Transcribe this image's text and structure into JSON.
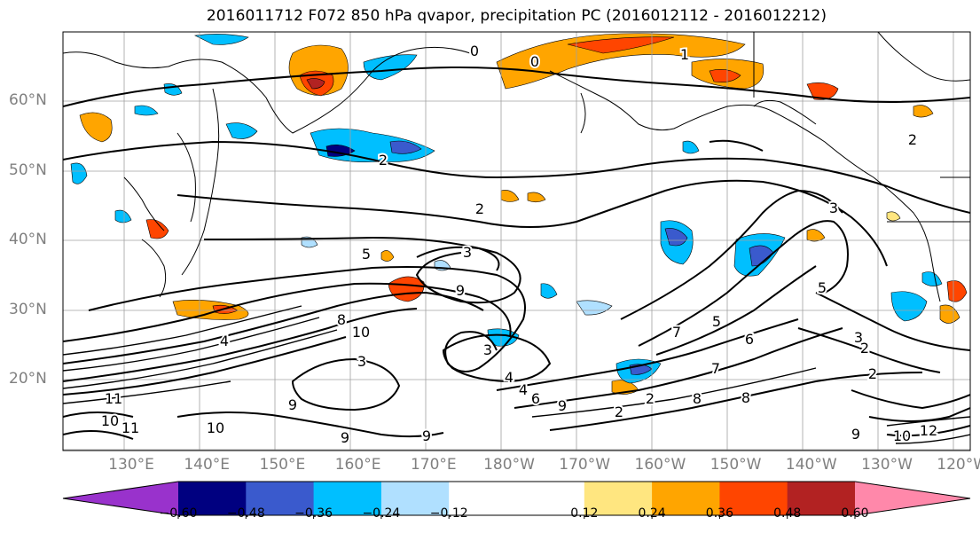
{
  "title": "2016011712 F072 850 hPa qvapor, precipitation PC (2016012112 - 2016012212)",
  "lat_labels": [
    {
      "text": "60°N",
      "lat": 60
    },
    {
      "text": "50°N",
      "lat": 50
    },
    {
      "text": "40°N",
      "lat": 40
    },
    {
      "text": "30°N",
      "lat": 30
    },
    {
      "text": "20°N",
      "lat": 20
    }
  ],
  "lon_labels": [
    "130°E",
    "140°E",
    "150°E",
    "160°E",
    "170°E",
    "180°W",
    "170°W",
    "160°W",
    "150°W",
    "140°W",
    "130°W",
    "120°W"
  ],
  "colorbar": {
    "colors": [
      "#9932cc",
      "#000080",
      "#3a5acd",
      "#00bfff",
      "#b0e0ff",
      "#ffffff",
      "#ffffff",
      "#ffe680",
      "#ffa500",
      "#ff4500",
      "#b22222",
      "#ff88aa"
    ],
    "tick_labels": [
      "−0.60",
      "−0.48",
      "−0.36",
      "−0.24",
      "−0.12",
      "0.12",
      "0.24",
      "0.36",
      "0.48",
      "0.60"
    ]
  },
  "contour_labels": [
    "0",
    "1",
    "0",
    "2",
    "2",
    "2",
    "3",
    "3",
    "5",
    "9",
    "8",
    "10",
    "3",
    "4",
    "4",
    "11",
    "10",
    "11",
    "9",
    "10",
    "9",
    "9",
    "6",
    "9",
    "7",
    "8",
    "5",
    "3",
    "2",
    "3",
    "2",
    "5",
    "7",
    "8",
    "6",
    "9",
    "10",
    "12",
    "2",
    "2",
    "4"
  ]
}
